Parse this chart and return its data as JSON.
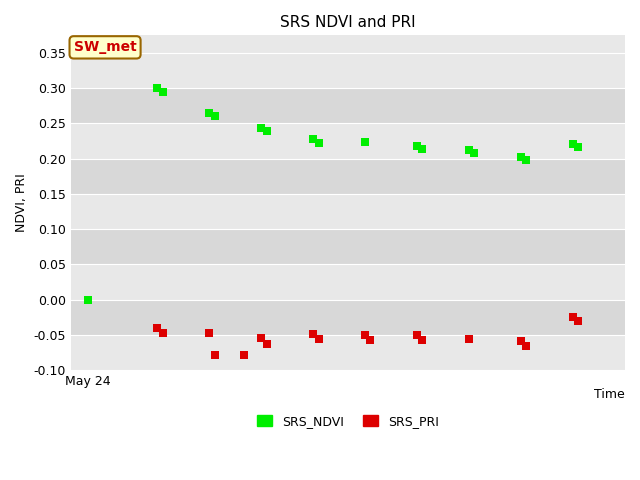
{
  "title": "SRS NDVI and PRI",
  "ylabel": "NDVI, PRI",
  "xlabel": "Time",
  "annotation": "SW_met",
  "ylim": [
    -0.1,
    0.375
  ],
  "yticks": [
    -0.1,
    -0.05,
    0.0,
    0.05,
    0.1,
    0.15,
    0.2,
    0.25,
    0.3,
    0.35
  ],
  "background_color": "#e8e8e8",
  "band_color_light": "#e8e8e8",
  "band_color_dark": "#d8d8d8",
  "ndvi_color": "#00ee00",
  "pri_color": "#dd0000",
  "ndvi_data": [
    [
      0.0,
      -0.001
    ],
    [
      2.0,
      0.3
    ],
    [
      2.15,
      0.295
    ],
    [
      3.5,
      0.265
    ],
    [
      3.65,
      0.26
    ],
    [
      5.0,
      0.243
    ],
    [
      5.15,
      0.239
    ],
    [
      6.5,
      0.228
    ],
    [
      6.65,
      0.222
    ],
    [
      8.0,
      0.224
    ],
    [
      9.5,
      0.218
    ],
    [
      9.65,
      0.214
    ],
    [
      11.0,
      0.212
    ],
    [
      11.15,
      0.208
    ],
    [
      12.5,
      0.203
    ],
    [
      12.65,
      0.198
    ],
    [
      14.0,
      0.221
    ],
    [
      14.15,
      0.216
    ]
  ],
  "pri_data": [
    [
      2.0,
      -0.04
    ],
    [
      2.15,
      -0.048
    ],
    [
      3.5,
      -0.048
    ],
    [
      3.65,
      -0.079
    ],
    [
      4.5,
      -0.079
    ],
    [
      5.0,
      -0.055
    ],
    [
      5.15,
      -0.063
    ],
    [
      6.5,
      -0.049
    ],
    [
      6.65,
      -0.056
    ],
    [
      8.0,
      -0.051
    ],
    [
      8.15,
      -0.057
    ],
    [
      9.5,
      -0.051
    ],
    [
      9.65,
      -0.057
    ],
    [
      11.0,
      -0.056
    ],
    [
      12.5,
      -0.059
    ],
    [
      12.65,
      -0.066
    ],
    [
      14.0,
      -0.025
    ],
    [
      14.15,
      -0.031
    ]
  ],
  "x_start_label": "May 24",
  "marker_size": 35,
  "title_fontsize": 11,
  "label_fontsize": 9,
  "tick_fontsize": 9,
  "legend_fontsize": 9,
  "annotation_fontsize": 10,
  "annotation_box_color": "#ffffcc",
  "annotation_border_color": "#996600",
  "annotation_text_color": "#cc0000",
  "xlim": [
    -0.5,
    15.5
  ]
}
